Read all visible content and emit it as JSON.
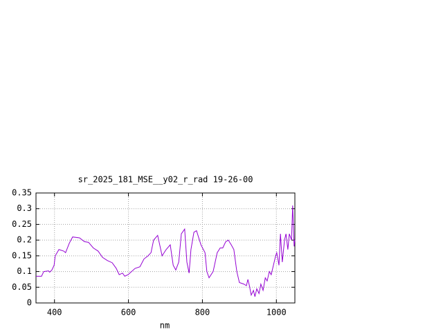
{
  "chart_data": {
    "type": "line",
    "title": "sr_2025_181_MSE__y02_r_rad 19-26-00",
    "xlabel": "nm",
    "x": [
      350,
      365,
      371,
      384,
      387,
      393,
      399,
      402,
      412,
      425,
      430,
      440,
      449,
      468,
      481,
      492,
      505,
      518,
      530,
      543,
      556,
      567,
      575,
      584,
      590,
      599,
      618,
      631,
      642,
      653,
      661,
      668,
      679,
      691,
      702,
      713,
      721,
      728,
      736,
      743,
      752,
      758,
      764,
      769,
      777,
      784,
      796,
      807,
      812,
      818,
      829,
      840,
      848,
      855,
      863,
      870,
      878,
      885,
      893,
      900,
      912,
      919,
      923,
      927,
      932,
      938,
      942,
      947,
      953,
      958,
      964,
      970,
      975,
      981,
      986,
      992,
      998,
      1001,
      1007,
      1011,
      1016,
      1022,
      1026,
      1031,
      1035,
      1041,
      1044,
      1048,
      1050
    ],
    "series": [
      {
        "name": null,
        "color": "#9400d3",
        "values": [
          0.085,
          0.085,
          0.1,
          0.102,
          0.098,
          0.105,
          0.12,
          0.15,
          0.17,
          0.165,
          0.16,
          0.19,
          0.21,
          0.207,
          0.195,
          0.193,
          0.175,
          0.165,
          0.145,
          0.135,
          0.128,
          0.11,
          0.09,
          0.095,
          0.085,
          0.09,
          0.11,
          0.115,
          0.14,
          0.15,
          0.16,
          0.2,
          0.215,
          0.15,
          0.17,
          0.185,
          0.12,
          0.105,
          0.13,
          0.22,
          0.235,
          0.13,
          0.095,
          0.17,
          0.225,
          0.23,
          0.185,
          0.16,
          0.1,
          0.08,
          0.1,
          0.16,
          0.175,
          0.175,
          0.195,
          0.2,
          0.185,
          0.17,
          0.1,
          0.065,
          0.06,
          0.055,
          0.075,
          0.055,
          0.025,
          0.04,
          0.02,
          0.045,
          0.03,
          0.06,
          0.04,
          0.08,
          0.07,
          0.1,
          0.09,
          0.12,
          0.15,
          0.16,
          0.12,
          0.22,
          0.13,
          0.2,
          0.22,
          0.17,
          0.22,
          0.2,
          0.31,
          0.18,
          0.2
        ]
      }
    ],
    "xlim": [
      350,
      1050
    ],
    "xticks": [
      400,
      600,
      800,
      1000
    ],
    "ylim": [
      0,
      0.35
    ],
    "yticks": [
      0,
      0.05,
      0.1,
      0.15,
      0.2,
      0.25,
      0.3,
      0.35
    ],
    "grid": true
  }
}
